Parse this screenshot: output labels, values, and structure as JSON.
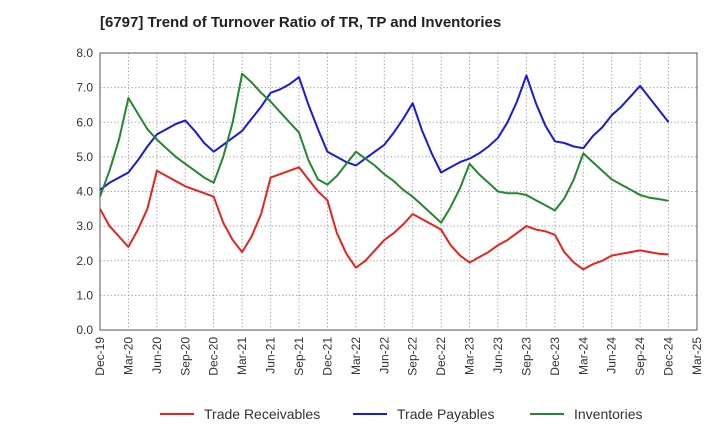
{
  "chart_data": {
    "type": "line",
    "title": "[6797]  Trend of Turnover Ratio of TR, TP and Inventories",
    "xlabel": "",
    "ylabel": "",
    "ylim": [
      0,
      8
    ],
    "yticks": [
      "0.0",
      "1.0",
      "2.0",
      "3.0",
      "4.0",
      "5.0",
      "6.0",
      "7.0",
      "8.0"
    ],
    "xticks": [
      "Dec-19",
      "Mar-20",
      "Jun-20",
      "Sep-20",
      "Dec-20",
      "Mar-21",
      "Jun-21",
      "Sep-21",
      "Dec-21",
      "Mar-22",
      "Jun-22",
      "Sep-22",
      "Dec-22",
      "Mar-23",
      "Jun-23",
      "Sep-23",
      "Dec-23",
      "Mar-24",
      "Jun-24",
      "Sep-24",
      "Dec-24",
      "Mar-25"
    ],
    "grid": true,
    "legend_position": "bottom",
    "series": [
      {
        "name": "Trade Receivables",
        "color": "#e8231c",
        "values": [
          3.5,
          3.0,
          2.7,
          2.4,
          2.9,
          3.5,
          4.6,
          4.45,
          4.3,
          4.15,
          4.05,
          3.95,
          3.85,
          3.1,
          2.6,
          2.25,
          2.7,
          3.35,
          4.4,
          4.5,
          4.6,
          4.7,
          4.35,
          4.0,
          3.75,
          2.8,
          2.2,
          1.8,
          2.0,
          2.3,
          2.6,
          2.8,
          3.05,
          3.35,
          3.2,
          3.05,
          2.9,
          2.45,
          2.15,
          1.95,
          2.1,
          2.25,
          2.45,
          2.6,
          2.8,
          3.0,
          2.9,
          2.85,
          2.75,
          2.25,
          1.95,
          1.75,
          1.9,
          2.0,
          2.15,
          2.2,
          2.25,
          2.3,
          2.25,
          2.2,
          2.18
        ]
      },
      {
        "name": "Trade Payables",
        "color": "#1a1adb",
        "values": [
          4.05,
          4.25,
          4.4,
          4.55,
          4.9,
          5.3,
          5.65,
          5.8,
          5.95,
          6.05,
          5.75,
          5.4,
          5.15,
          5.35,
          5.55,
          5.75,
          6.1,
          6.45,
          6.85,
          6.95,
          7.1,
          7.3,
          6.5,
          5.8,
          5.15,
          5.0,
          4.85,
          4.75,
          4.95,
          5.15,
          5.35,
          5.7,
          6.1,
          6.55,
          5.75,
          5.1,
          4.55,
          4.7,
          4.85,
          4.95,
          5.1,
          5.3,
          5.55,
          6.0,
          6.6,
          7.35,
          6.55,
          5.9,
          5.45,
          5.4,
          5.3,
          5.25,
          5.6,
          5.85,
          6.2,
          6.45,
          6.75,
          7.05,
          6.7,
          6.35,
          6.0
        ]
      },
      {
        "name": "Inventories",
        "color": "#23882e",
        "values": [
          3.85,
          4.6,
          5.5,
          6.7,
          6.25,
          5.8,
          5.5,
          5.25,
          5.0,
          4.8,
          4.6,
          4.4,
          4.25,
          5.0,
          6.0,
          7.4,
          7.15,
          6.85,
          6.6,
          6.3,
          6.0,
          5.7,
          4.9,
          4.35,
          4.2,
          4.45,
          4.8,
          5.15,
          4.95,
          4.75,
          4.5,
          4.3,
          4.05,
          3.85,
          3.6,
          3.35,
          3.1,
          3.55,
          4.1,
          4.8,
          4.5,
          4.25,
          4.0,
          3.95,
          3.95,
          3.9,
          3.75,
          3.6,
          3.45,
          3.8,
          4.35,
          5.1,
          4.85,
          4.6,
          4.35,
          4.2,
          4.05,
          3.9,
          3.82,
          3.78,
          3.73
        ]
      }
    ]
  }
}
